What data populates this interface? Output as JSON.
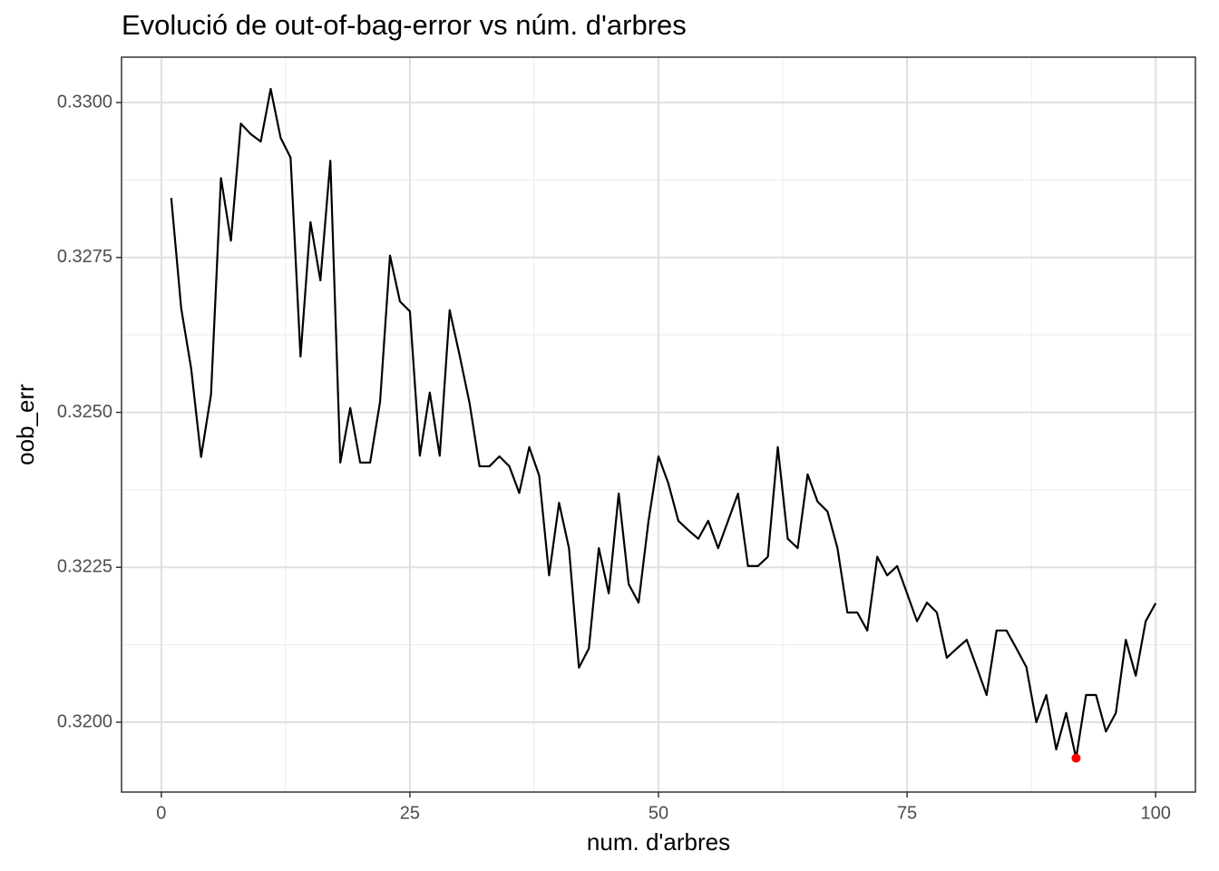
{
  "chart_data": {
    "type": "line",
    "title": "Evolució de out-of-bag-error vs núm. d'arbres",
    "x_label": "num. d'arbres",
    "y_label": "oob_err",
    "x": [
      1,
      2,
      3,
      4,
      5,
      6,
      7,
      8,
      9,
      10,
      11,
      12,
      13,
      14,
      15,
      16,
      17,
      18,
      19,
      20,
      21,
      22,
      23,
      24,
      25,
      26,
      27,
      28,
      29,
      30,
      31,
      32,
      33,
      34,
      35,
      36,
      37,
      38,
      39,
      40,
      41,
      42,
      43,
      44,
      45,
      46,
      47,
      48,
      49,
      50,
      51,
      52,
      53,
      54,
      55,
      56,
      57,
      58,
      59,
      60,
      61,
      62,
      63,
      64,
      65,
      66,
      67,
      68,
      69,
      70,
      71,
      72,
      73,
      74,
      75,
      76,
      77,
      78,
      79,
      80,
      81,
      82,
      83,
      84,
      85,
      86,
      87,
      88,
      89,
      90,
      91,
      92,
      93,
      94,
      95,
      96,
      97,
      98,
      99,
      100
    ],
    "series": [
      {
        "color": "#000000",
        "values": [
          0.32846,
          0.32668,
          0.32571,
          0.32428,
          0.32529,
          0.32878,
          0.32777,
          0.32966,
          0.32949,
          0.32937,
          0.33022,
          0.32943,
          0.32911,
          0.3259,
          0.32807,
          0.32713,
          0.32906,
          0.32419,
          0.32507,
          0.32419,
          0.32419,
          0.32517,
          0.32753,
          0.32679,
          0.32663,
          0.3243,
          0.32532,
          0.3243,
          0.32665,
          0.32592,
          0.32515,
          0.32413,
          0.32413,
          0.32429,
          0.32413,
          0.3237,
          0.32444,
          0.32398,
          0.32237,
          0.32354,
          0.32281,
          0.32088,
          0.32119,
          0.32281,
          0.32208,
          0.32369,
          0.32223,
          0.32193,
          0.32325,
          0.32429,
          0.32385,
          0.32325,
          0.3231,
          0.32296,
          0.32325,
          0.32281,
          0.32325,
          0.32369,
          0.32252,
          0.32252,
          0.32267,
          0.32444,
          0.32296,
          0.32281,
          0.324,
          0.32356,
          0.3234,
          0.32281,
          0.32177,
          0.32177,
          0.32148,
          0.32267,
          0.32237,
          0.32252,
          0.32208,
          0.32163,
          0.32193,
          0.32177,
          0.32104,
          0.32119,
          0.32133,
          0.32089,
          0.32044,
          0.32148,
          0.32148,
          0.32119,
          0.32089,
          0.32,
          0.32044,
          0.31956,
          0.32015,
          0.31942,
          0.32044,
          0.32044,
          0.31985,
          0.32015,
          0.32133,
          0.32075,
          0.32163,
          0.32192
        ]
      }
    ],
    "highlight": {
      "x": 92,
      "y": 0.31942,
      "color": "#ff0000"
    },
    "xlim": [
      -4,
      104
    ],
    "ylim": [
      0.318873,
      0.330732
    ],
    "xticks": [
      0,
      25,
      50,
      75,
      100
    ],
    "yticks": [
      {
        "value": 0.32,
        "label": "0.3200"
      },
      {
        "value": 0.3225,
        "label": "0.3225"
      },
      {
        "value": 0.325,
        "label": "0.3250"
      },
      {
        "value": 0.3275,
        "label": "0.3275"
      },
      {
        "value": 0.33,
        "label": "0.3300"
      }
    ],
    "minor_xticks": [
      12.5,
      37.5,
      62.5,
      87.5
    ],
    "minor_yticks": [
      0.32125,
      0.32375,
      0.32625,
      0.32875
    ],
    "grid": true
  }
}
